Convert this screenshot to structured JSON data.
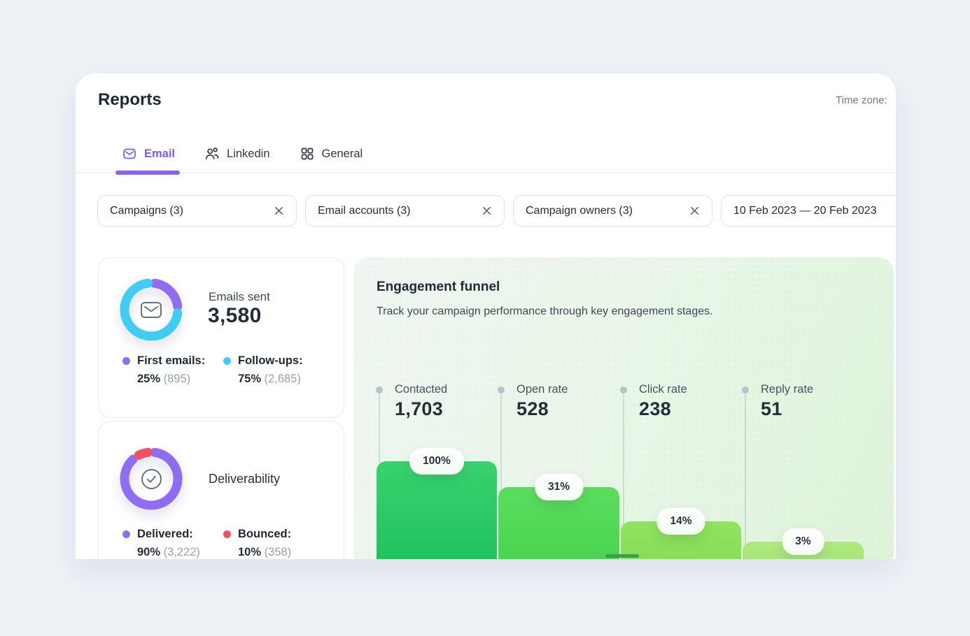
{
  "header": {
    "title": "Reports",
    "timezone_label": "Time zone:"
  },
  "tabs": [
    {
      "label": "Email",
      "icon": "email-icon",
      "active": true
    },
    {
      "label": "Linkedin",
      "icon": "linkedin-people-icon",
      "active": false
    },
    {
      "label": "General",
      "icon": "grid-icon",
      "active": false
    }
  ],
  "filters": {
    "campaigns": {
      "label": "Campaigns (3)"
    },
    "email_accounts": {
      "label": "Email accounts (3)"
    },
    "campaign_owners": {
      "label": "Campaign owners (3)"
    },
    "date_range": {
      "label": "10 Feb 2023 — 20 Feb 2023"
    }
  },
  "emails_sent_card": {
    "title": "Emails sent",
    "total": "3,580",
    "center_icon": "envelope-icon",
    "legend": [
      {
        "label": "First emails:",
        "pct": 25,
        "pct_text": "25%",
        "count_text": "(895)",
        "color": "#8f6cf3"
      },
      {
        "label": "Follow-ups:",
        "pct": 75,
        "pct_text": "75%",
        "count_text": "(2,685)",
        "color": "#3fcdf5"
      }
    ]
  },
  "deliverability_card": {
    "title": "Deliverability",
    "center_icon": "check-circle-icon",
    "legend": [
      {
        "label": "Delivered:",
        "pct": 90,
        "pct_text": "90%",
        "count_text": "(3,222)",
        "color": "#8f6cf3"
      },
      {
        "label": "Bounced:",
        "pct": 10,
        "pct_text": "10%",
        "count_text": "(358)",
        "color": "#f35162"
      }
    ]
  },
  "funnel": {
    "title": "Engagement funnel",
    "subtitle": "Track your campaign performance through key engagement stages.",
    "stages": [
      {
        "label": "Contacted",
        "value": "1,703",
        "pct_text": "100%"
      },
      {
        "label": "Open rate",
        "value": "528",
        "pct_text": "31%"
      },
      {
        "label": "Click rate",
        "value": "238",
        "pct_text": "14%"
      },
      {
        "label": "Reply rate",
        "value": "51",
        "pct_text": "3%"
      }
    ]
  },
  "chart_data": [
    {
      "type": "pie",
      "title": "Emails sent",
      "total": 3580,
      "categories": [
        "First emails",
        "Follow-ups"
      ],
      "values": [
        895,
        2685
      ],
      "percents": [
        25,
        75
      ],
      "colors": [
        "#8f6cf3",
        "#3fcdf5"
      ],
      "legend_position": "bottom"
    },
    {
      "type": "pie",
      "title": "Deliverability",
      "categories": [
        "Delivered",
        "Bounced"
      ],
      "values": [
        3222,
        358
      ],
      "percents": [
        90,
        10
      ],
      "colors": [
        "#8f6cf3",
        "#f35162"
      ],
      "legend_position": "bottom"
    },
    {
      "type": "bar",
      "title": "Engagement funnel",
      "subtitle": "Track your campaign performance through key engagement stages.",
      "categories": [
        "Contacted",
        "Open rate",
        "Click rate",
        "Reply rate"
      ],
      "values": [
        1703,
        528,
        238,
        51
      ],
      "percents": [
        100,
        31,
        14,
        3
      ],
      "colors": [
        "#2bc962",
        "#4fd854",
        "#8ce05b",
        "#a8e77a"
      ],
      "grid": false,
      "legend_position": "none"
    }
  ]
}
